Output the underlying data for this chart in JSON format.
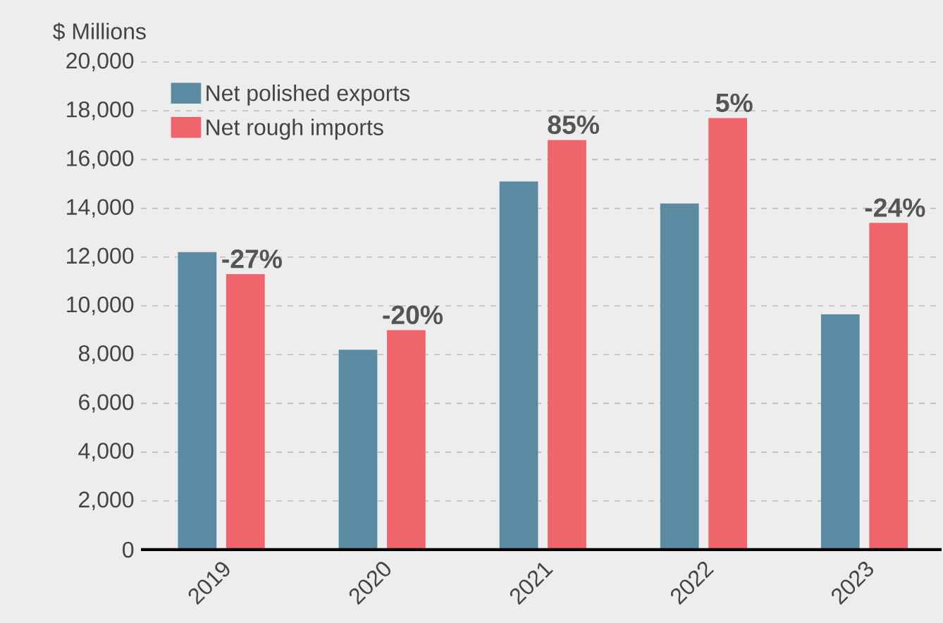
{
  "chart_data": {
    "type": "bar",
    "ylabel": "$ Millions",
    "categories": [
      "2019",
      "2020",
      "2021",
      "2022",
      "2023"
    ],
    "series": [
      {
        "name": "Net polished exports",
        "color": "#5b8aa3",
        "values": [
          12200,
          8200,
          15100,
          14200,
          9650
        ]
      },
      {
        "name": "Net rough imports",
        "color": "#f0656b",
        "values": [
          11300,
          9000,
          16800,
          17700,
          13400
        ]
      }
    ],
    "annotations": [
      {
        "text": "-27%",
        "x": "2019",
        "y": 11300
      },
      {
        "text": "-20%",
        "x": "2020",
        "y": 9000
      },
      {
        "text": "85%",
        "x": "2021",
        "y": 16800
      },
      {
        "text": "5%",
        "x": "2022",
        "y": 17700
      },
      {
        "text": "-24%",
        "x": "2023",
        "y": 13400
      }
    ],
    "ylim": [
      0,
      20000
    ],
    "yticks": [
      0,
      {
        "value": 2000,
        "label": "2,000"
      },
      {
        "value": 4000,
        "label": "4,000"
      },
      {
        "value": 6000,
        "label": "6,000"
      },
      {
        "value": 8000,
        "label": "8,000"
      },
      {
        "value": 10000,
        "label": "10,000"
      },
      {
        "value": 12000,
        "label": "12,000"
      },
      {
        "value": 14000,
        "label": "14,000"
      },
      {
        "value": 16000,
        "label": "16,000"
      },
      {
        "value": 18000,
        "label": "18,000"
      },
      {
        "value": 20000,
        "label": "20,000"
      }
    ],
    "grid": "y",
    "legend": "top left"
  }
}
